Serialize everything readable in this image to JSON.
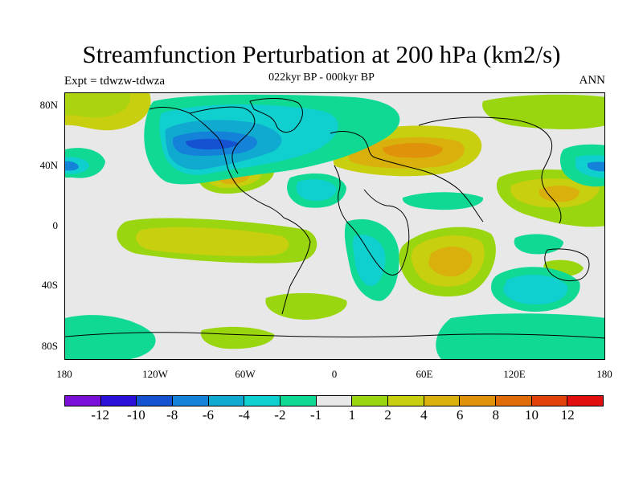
{
  "title": "Streamfunction Perturbation at 200 hPa (km2/s)",
  "subtitle": "022kyr BP - 000kyr BP",
  "left_label": "Expt = tdwzw-tdwza",
  "right_label": "ANN",
  "y_axis_labels": [
    "80N",
    "40N",
    "0",
    "40S",
    "80S"
  ],
  "x_axis_labels": [
    "180",
    "120W",
    "60W",
    "0",
    "60E",
    "120E",
    "180"
  ],
  "colorbar": {
    "colors": [
      "#7a0fd8",
      "#2a10d8",
      "#1452d2",
      "#1482d8",
      "#10a9cf",
      "#0fcfcf",
      "#10d994",
      "#e8e8e8",
      "#99d60f",
      "#c7cf0f",
      "#d9b00c",
      "#e0920a",
      "#df6c08",
      "#e2420a",
      "#e20f0f"
    ],
    "labels": [
      "-12",
      "-10",
      "-8",
      "-6",
      "-4",
      "-2",
      "-1",
      "1",
      "2",
      "4",
      "6",
      "8",
      "10",
      "12"
    ]
  },
  "colors": {
    "background": "#e8e8e8",
    "coast": "#000000"
  }
}
